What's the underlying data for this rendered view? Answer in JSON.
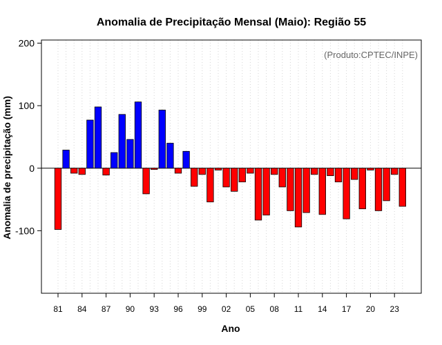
{
  "chart_data": {
    "type": "bar",
    "title": "Anomalia de Precipitação Mensal (Maio): Região 55",
    "xlabel": "Ano",
    "ylabel": "Anomalia de precipitação (mm)",
    "annotation": "(Produto:CPTEC/INPE)",
    "ylim": [
      -200,
      205
    ],
    "yticks": [
      -100,
      0,
      100,
      200
    ],
    "ytick_labels": [
      "-100",
      "0",
      "100",
      "200"
    ],
    "xtick_labels": [
      "81",
      "84",
      "87",
      "90",
      "93",
      "96",
      "99",
      "02",
      "05",
      "08",
      "11",
      "14",
      "17",
      "20",
      "23"
    ],
    "xtick_years": [
      1981,
      1984,
      1987,
      1990,
      1993,
      1996,
      1999,
      2002,
      2005,
      2008,
      2011,
      2014,
      2017,
      2020,
      2023
    ],
    "grid": "vertical dotted",
    "colors": {
      "positive": "#0000ff",
      "negative": "#ff0000",
      "outline": "#000000",
      "grid": "#d3d3d3",
      "annotation": "#666666"
    },
    "years": [
      1981,
      1982,
      1983,
      1984,
      1985,
      1986,
      1987,
      1988,
      1989,
      1990,
      1991,
      1992,
      1993,
      1994,
      1995,
      1996,
      1997,
      1998,
      1999,
      2000,
      2001,
      2002,
      2003,
      2004,
      2005,
      2006,
      2007,
      2008,
      2009,
      2010,
      2011,
      2012,
      2013,
      2014,
      2015,
      2016,
      2017,
      2018,
      2019,
      2020,
      2021,
      2022,
      2023,
      2024
    ],
    "values": [
      -98,
      29,
      -8,
      -10,
      77,
      98,
      -11,
      25,
      86,
      46,
      106,
      -41,
      -2,
      93,
      40,
      -8,
      27,
      -29,
      -10,
      -54,
      -3,
      -30,
      -37,
      -22,
      -8,
      -83,
      -75,
      -10,
      -30,
      -68,
      -94,
      -71,
      -10,
      -74,
      -12,
      -22,
      -81,
      -18,
      -65,
      -3,
      -68,
      -52,
      -10,
      -61
    ]
  }
}
